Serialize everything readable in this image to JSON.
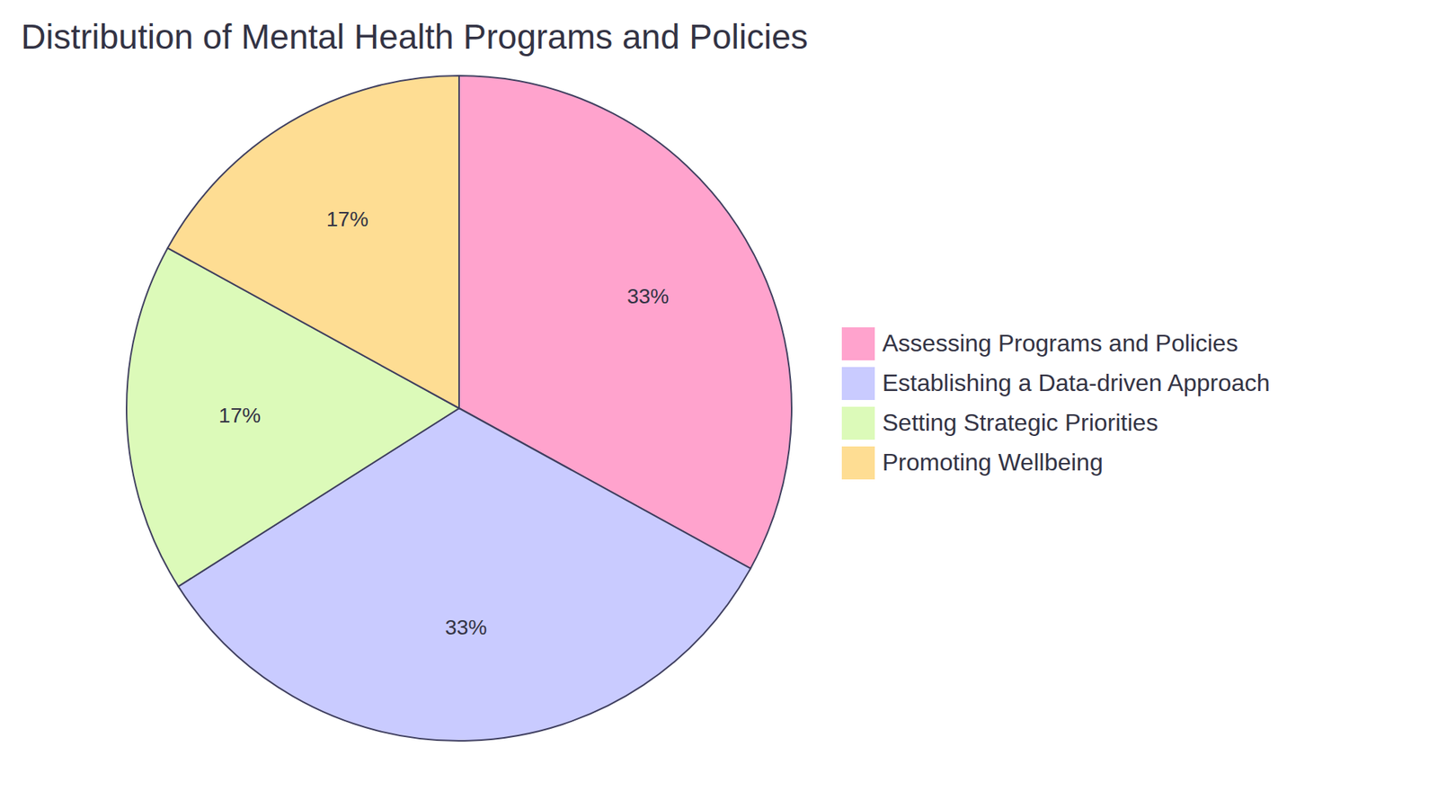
{
  "chart_data": {
    "type": "pie",
    "title": "Distribution of Mental Health Programs and Policies",
    "categories": [
      "Assessing Programs and Policies",
      "Establishing a Data-driven Approach",
      "Setting Strategic Priorities",
      "Promoting Wellbeing"
    ],
    "values": [
      33,
      33,
      17,
      17
    ],
    "value_labels": [
      "33%",
      "33%",
      "17%",
      "17%"
    ],
    "colors": [
      "#ffa3cd",
      "#c9cbff",
      "#dcfab9",
      "#fedd93"
    ],
    "data_labels": true,
    "legend": "right"
  }
}
